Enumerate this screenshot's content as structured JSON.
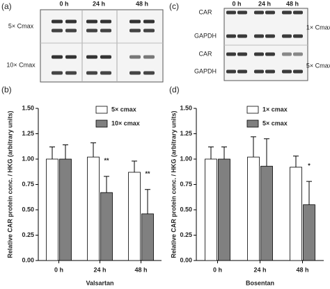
{
  "blot_a": {
    "label": "(a)",
    "columns": [
      "0 h",
      "24 h",
      "48 h"
    ],
    "groups": [
      "5× Cmax",
      "10× Cmax"
    ]
  },
  "blot_c": {
    "label": "(c)",
    "columns": [
      "0 h",
      "24 h",
      "48 h"
    ],
    "bands": [
      "CAR",
      "GAPDH",
      "CAR",
      "GAPDH"
    ],
    "groups": [
      "1× Cmax",
      "5× Cmax"
    ]
  },
  "chart_data": [
    {
      "type": "bar",
      "label": "(b)",
      "xlabel": "Valsartan",
      "ylabel": "Relative CAR protein conc. / HKG (arbitrary units)",
      "categories": [
        "0 h",
        "24 h",
        "48 h"
      ],
      "series": [
        {
          "name": "5× cmax",
          "color": "#ffffff",
          "values": [
            1.0,
            1.02,
            0.87
          ],
          "errors": [
            0.12,
            0.14,
            0.11
          ]
        },
        {
          "name": "10× cmax",
          "color": "#808080",
          "values": [
            1.0,
            0.67,
            0.46
          ],
          "errors": [
            0.14,
            0.16,
            0.24
          ],
          "annotations": [
            null,
            "**",
            "**"
          ]
        }
      ],
      "ylim": [
        0,
        1.5
      ],
      "yticks": [
        {
          "value": 0,
          "label": "0.00"
        },
        {
          "value": 0.25,
          "label": "0.25"
        },
        {
          "value": 0.5,
          "label": "0.50"
        },
        {
          "value": 0.75,
          "label": "0.75"
        },
        {
          "value": 1,
          "label": "1.00"
        },
        {
          "value": 1.25,
          "label": "1.25"
        },
        {
          "value": 1.5,
          "label": "1.50"
        }
      ]
    },
    {
      "type": "bar",
      "label": "(d)",
      "xlabel": "Bosentan",
      "ylabel": "Relative CAR protein conc. / HKG (arbitrary units)",
      "categories": [
        "0 h",
        "24 h",
        "48 h"
      ],
      "series": [
        {
          "name": "1× cmax",
          "color": "#ffffff",
          "values": [
            1.0,
            1.02,
            0.92
          ],
          "errors": [
            0.12,
            0.2,
            0.11
          ]
        },
        {
          "name": "5× cmax",
          "color": "#808080",
          "values": [
            1.0,
            0.93,
            0.55
          ],
          "errors": [
            0.12,
            0.27,
            0.23
          ],
          "annotations": [
            null,
            null,
            "*"
          ]
        }
      ],
      "ylim": [
        0,
        1.5
      ],
      "yticks": [
        {
          "value": 0,
          "label": "0.00"
        },
        {
          "value": 0.25,
          "label": "0.25"
        },
        {
          "value": 0.5,
          "label": "0.50"
        },
        {
          "value": 0.75,
          "label": "0.75"
        },
        {
          "value": 1,
          "label": "1.00"
        },
        {
          "value": 1.25,
          "label": "1.25"
        },
        {
          "value": 1.5,
          "label": "1.50"
        }
      ]
    }
  ]
}
